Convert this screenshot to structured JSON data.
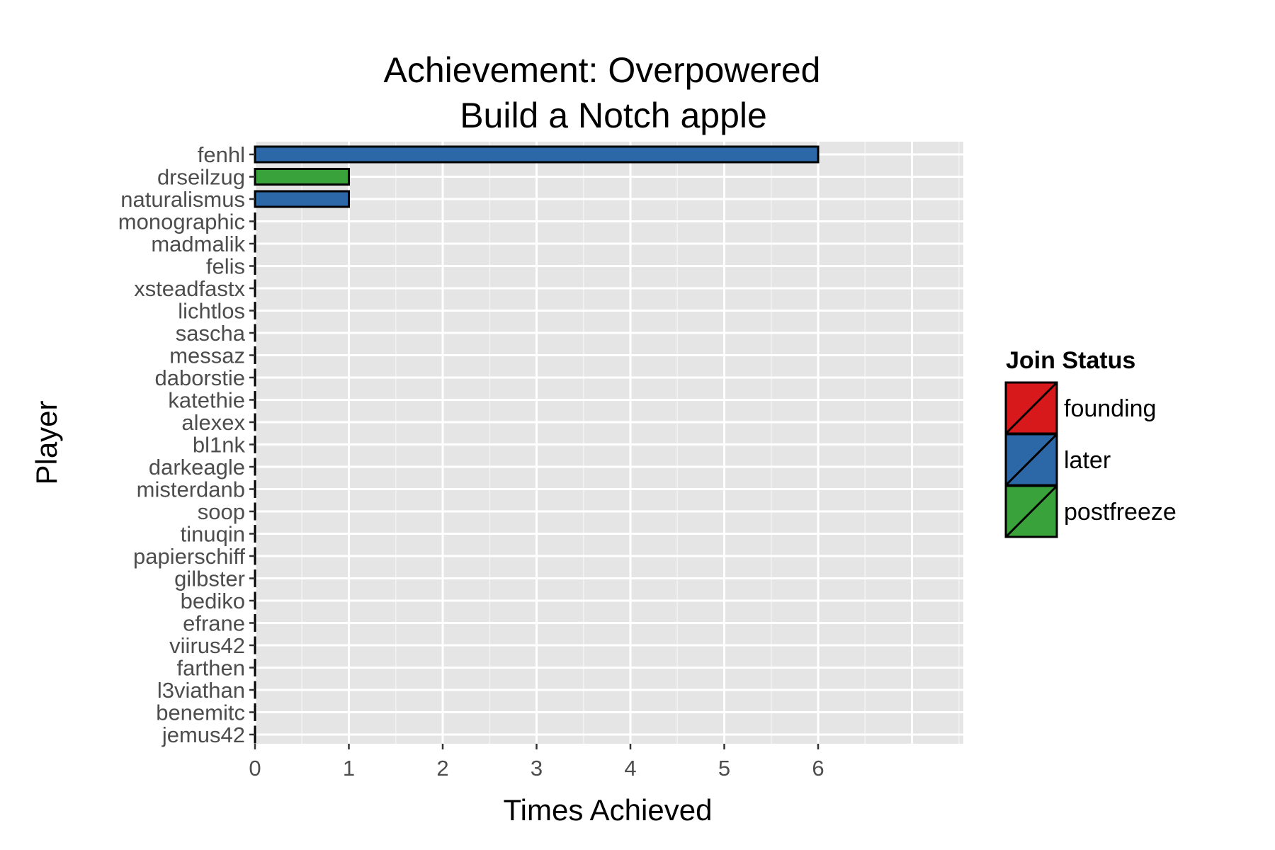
{
  "chart_data": {
    "type": "bar",
    "orientation": "horizontal",
    "title": [
      "Achievement: Overpowered",
      "Build a Notch apple"
    ],
    "xlabel": "Times Achieved",
    "ylabel": "Player",
    "xlim": [
      0,
      7.6
    ],
    "xticks": [
      0,
      1,
      2,
      3,
      4,
      5,
      6
    ],
    "grid": true,
    "legend_position": "right",
    "legend": {
      "title": "Join Status",
      "entries": [
        {
          "name": "founding",
          "color": "#d7191c"
        },
        {
          "name": "later",
          "color": "#2c68a8"
        },
        {
          "name": "postfreeze",
          "color": "#3aa23a"
        }
      ]
    },
    "categories": [
      "fenhl",
      "drseilzug",
      "naturalismus",
      "monographic",
      "madmalik",
      "felis",
      "xsteadfastx",
      "lichtlos",
      "sascha",
      "messaz",
      "daborstie",
      "katethie",
      "alexex",
      "bl1nk",
      "darkeagle",
      "misterdanb",
      "soop",
      "tinuqin",
      "papierschiff",
      "gilbster",
      "bediko",
      "efrane",
      "viirus42",
      "farthen",
      "l3viathan",
      "benemitc",
      "jemus42"
    ],
    "values": [
      6,
      1,
      1,
      0,
      0,
      0,
      0,
      0,
      0,
      0,
      0,
      0,
      0,
      0,
      0,
      0,
      0,
      0,
      0,
      0,
      0,
      0,
      0,
      0,
      0,
      0,
      0
    ],
    "status": [
      "later",
      "postfreeze",
      "later",
      "later",
      "later",
      "later",
      "later",
      "later",
      "later",
      "later",
      "later",
      "later",
      "later",
      "later",
      "later",
      "later",
      "later",
      "later",
      "later",
      "later",
      "later",
      "later",
      "later",
      "later",
      "later",
      "later",
      "later"
    ]
  }
}
